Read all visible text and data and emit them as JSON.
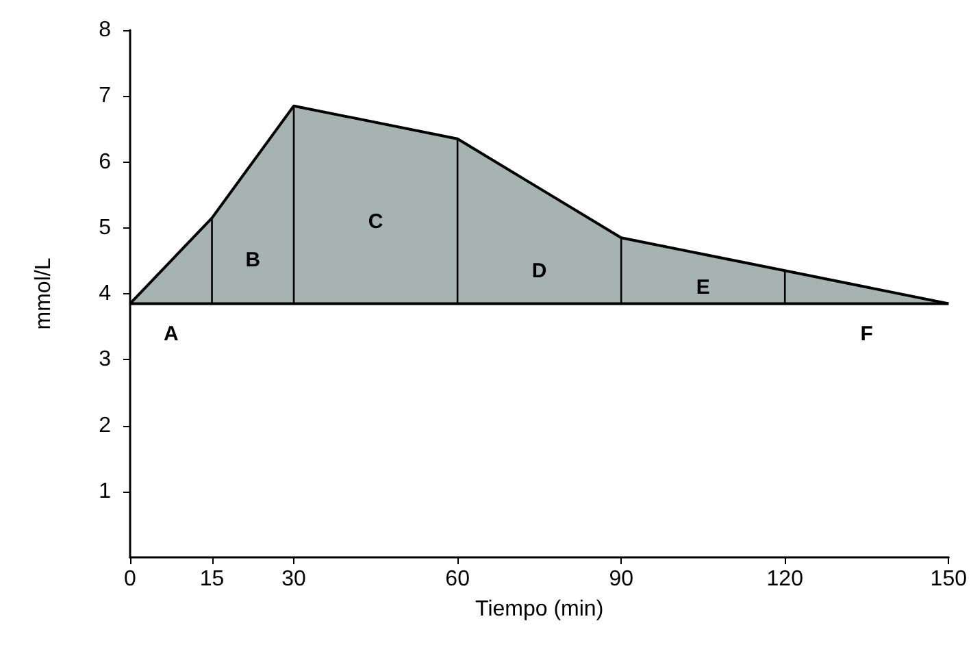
{
  "chart_data": {
    "type": "area",
    "xlabel": "Tiempo (min)",
    "ylabel": "mmol/L",
    "x": [
      0,
      15,
      30,
      60,
      90,
      120,
      150
    ],
    "series": [
      {
        "color": "#a7b3b1",
        "values": [
          3.85,
          5.15,
          6.85,
          6.35,
          4.85,
          4.35,
          3.85
        ]
      }
    ],
    "xlim": [
      0,
      150
    ],
    "xticks": [
      0,
      15,
      30,
      60,
      90,
      120,
      150
    ],
    "ylim": [
      0,
      8
    ],
    "yticks": [
      1,
      2,
      3,
      4,
      5,
      6,
      7,
      8
    ],
    "annotations": [
      "A",
      "B",
      "C",
      "D",
      "E",
      "F"
    ],
    "grid": false,
    "marker": "none",
    "line_style": "solid"
  }
}
